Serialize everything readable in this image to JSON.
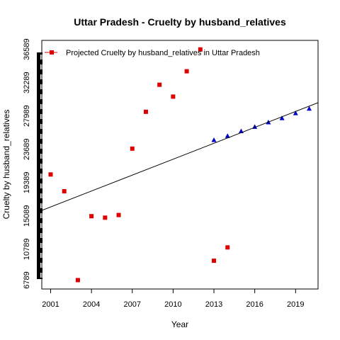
{
  "chart_data": {
    "type": "scatter",
    "title": "Uttar Pradesh  -  Cruelty by husband_relatives",
    "xlabel": "Year",
    "ylabel": "Cruelty by husband_relatives",
    "xlim": [
      2000.35,
      2020.65
    ],
    "ylim": [
      5650,
      37750
    ],
    "x_ticks": [
      2001,
      2004,
      2007,
      2010,
      2013,
      2016,
      2019
    ],
    "y_ticks": [
      6789,
      10789,
      15089,
      19389,
      23689,
      27989,
      32289,
      36589
    ],
    "y_ticks_stepped": true,
    "legend": {
      "position": "top-left",
      "label": "Projected  Cruelty by husband_relatives  in  Uttar Pradesh"
    },
    "series": [
      {
        "type": "points",
        "marker": "square",
        "color": "#dd0000",
        "x": [
          2001,
          2002,
          2003,
          2004,
          2005,
          2006,
          2007,
          2008,
          2009,
          2010,
          2011,
          2012,
          2013,
          2014
        ],
        "y": [
          20440,
          18270,
          6800,
          15050,
          14860,
          15200,
          23770,
          28530,
          32020,
          30490,
          33760,
          36580,
          9300,
          11020
        ]
      },
      {
        "type": "points",
        "marker": "triangle",
        "color": "#0000cc",
        "x": [
          2013,
          2014,
          2015,
          2016,
          2017,
          2018,
          2019,
          2020
        ],
        "y": [
          24900,
          25430,
          26040,
          26600,
          27190,
          27730,
          28370,
          28950
        ]
      },
      {
        "type": "line",
        "color": "#000000",
        "x": [
          2000.35,
          2020.65
        ],
        "y": [
          15800,
          29700
        ]
      }
    ]
  }
}
